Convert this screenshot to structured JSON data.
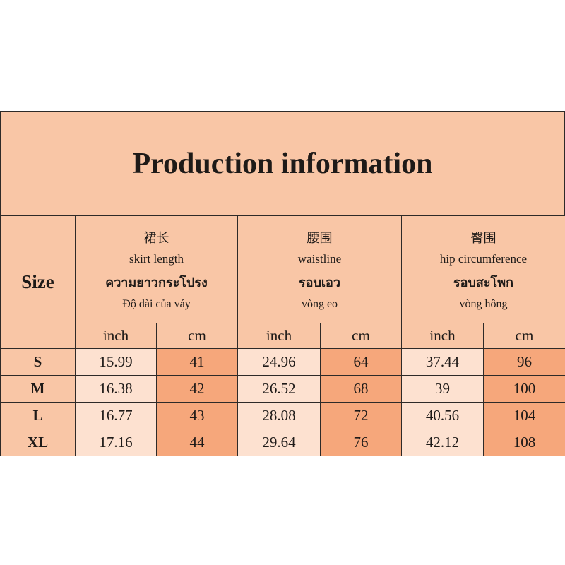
{
  "title": "Production information",
  "size_label": "Size",
  "groups": [
    {
      "lines": [
        "裙长",
        "skirt length",
        "ความยาวกระโปรง",
        "Độ dài của váy"
      ]
    },
    {
      "lines": [
        "腰围",
        "waistline",
        "รอบเอว",
        "vòng eo"
      ]
    },
    {
      "lines": [
        "臀围",
        "hip circumference",
        "รอบสะโพก",
        "vòng hông"
      ]
    }
  ],
  "units": [
    "inch",
    "cm",
    "inch",
    "cm",
    "inch",
    "cm"
  ],
  "rows": [
    [
      "S",
      "15.99",
      "41",
      "24.96",
      "64",
      "37.44",
      "96"
    ],
    [
      "M",
      "16.38",
      "42",
      "26.52",
      "68",
      "39",
      "100"
    ],
    [
      "L",
      "16.77",
      "43",
      "28.08",
      "72",
      "40.56",
      "104"
    ],
    [
      "XL",
      "17.16",
      "44",
      "29.64",
      "76",
      "42.12",
      "108"
    ]
  ]
}
